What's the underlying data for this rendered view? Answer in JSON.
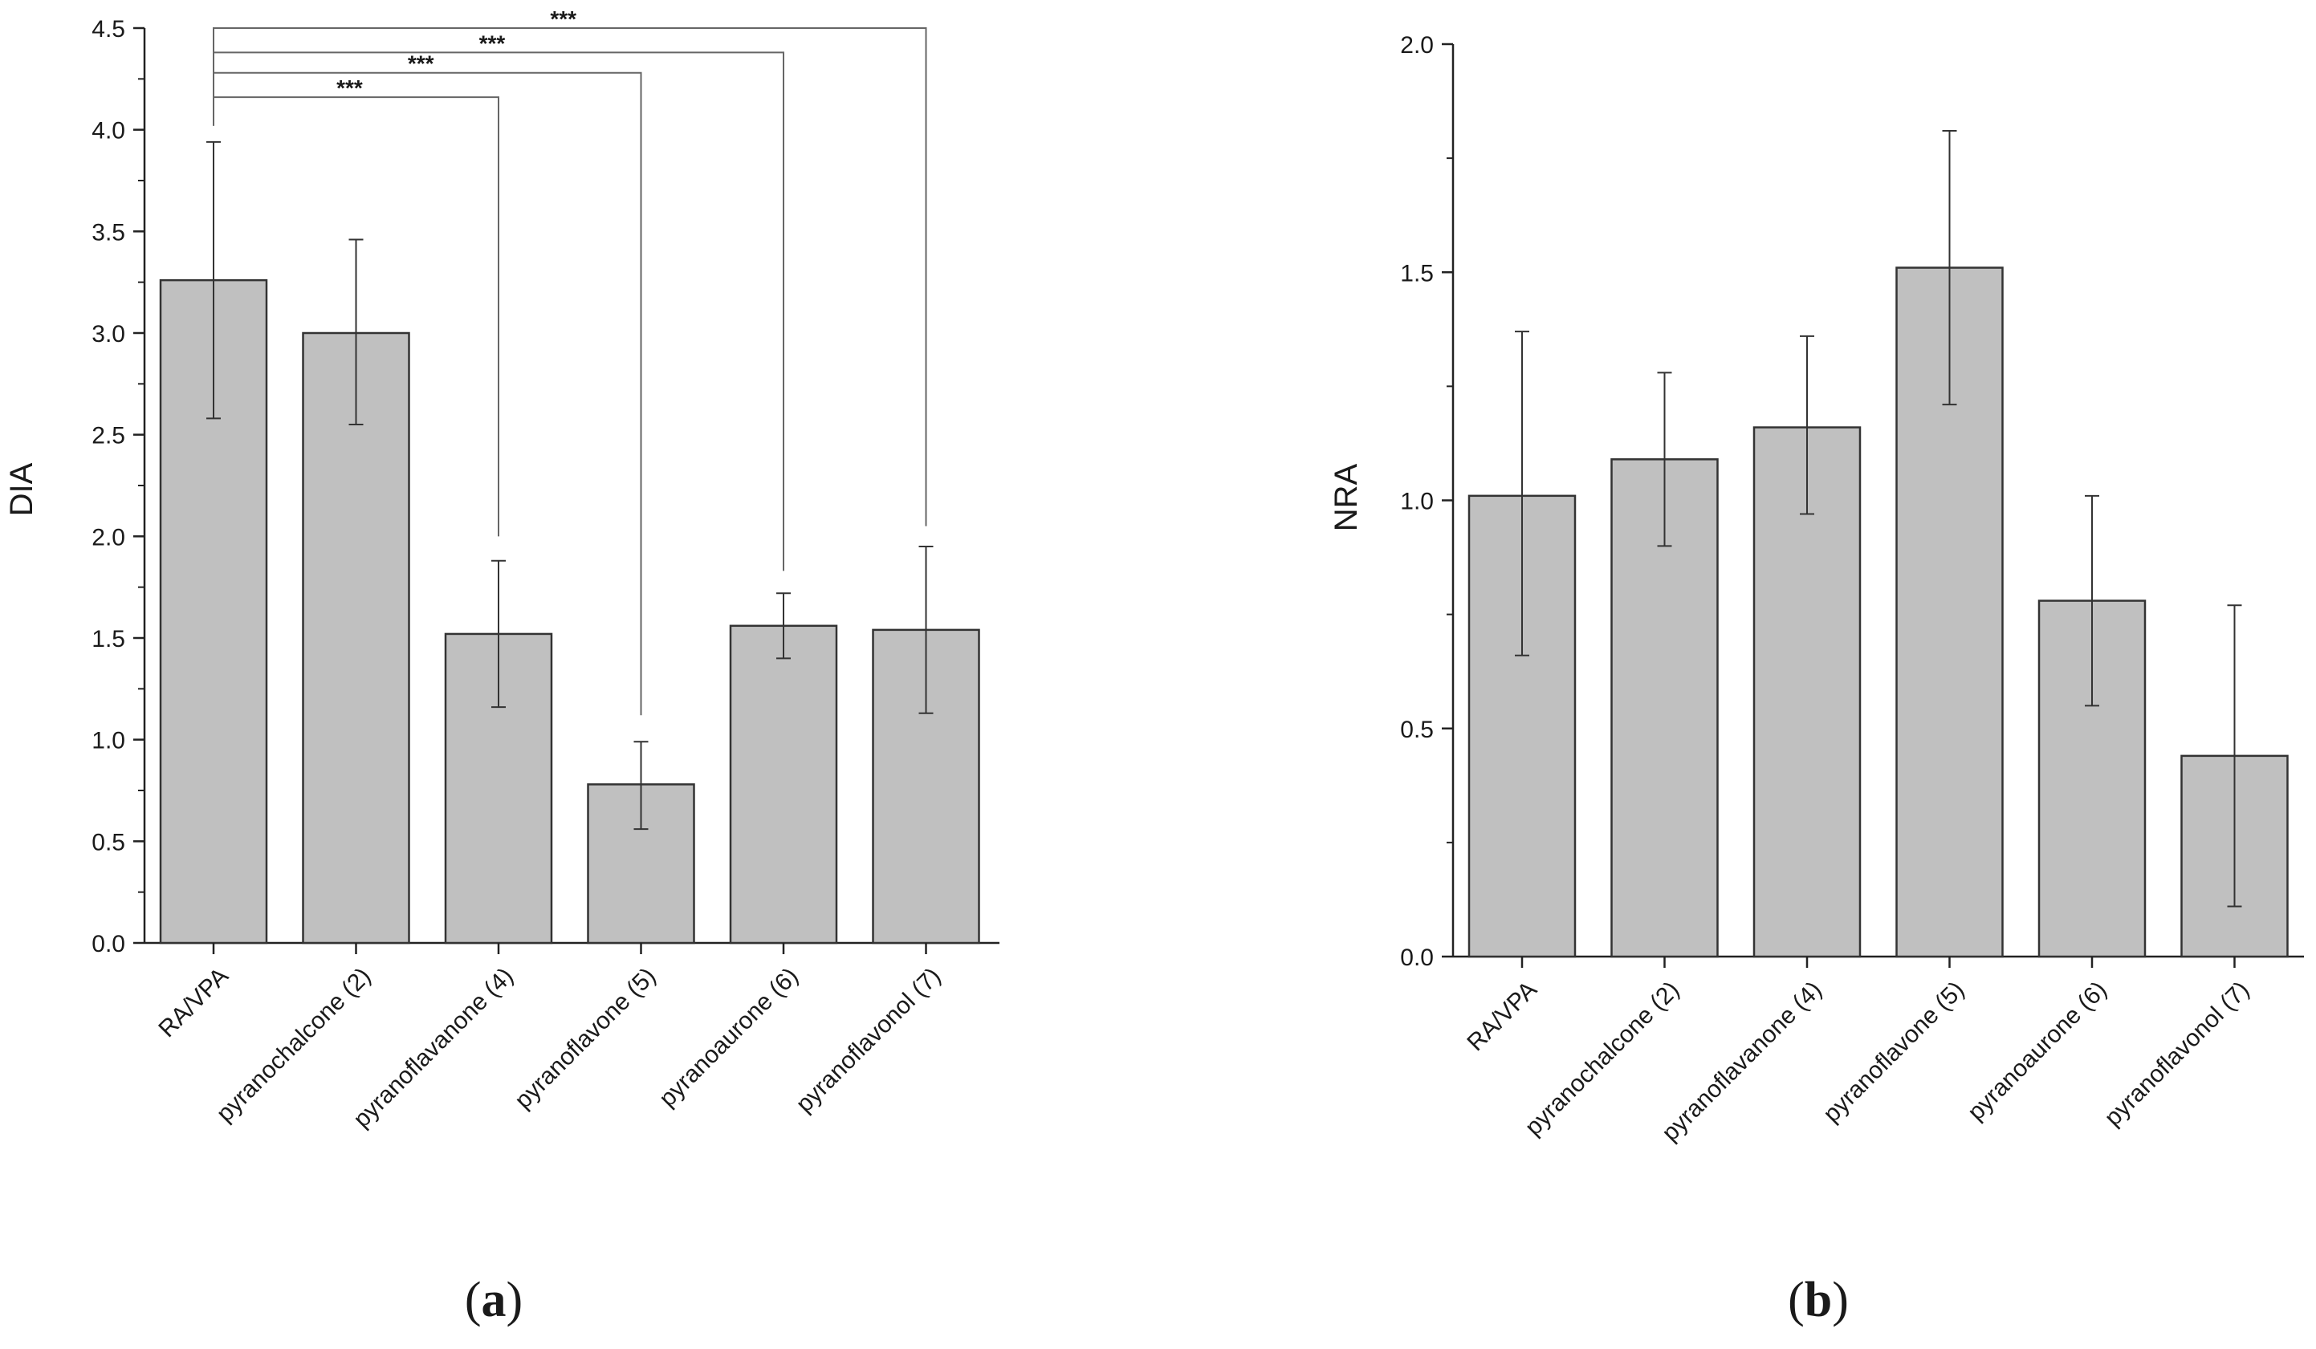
{
  "panels": [
    {
      "id": "a",
      "caption_open": "(",
      "caption_letter": "a",
      "caption_close": ")"
    },
    {
      "id": "b",
      "caption_open": "(",
      "caption_letter": "b",
      "caption_close": ")"
    }
  ],
  "chart_data": [
    {
      "type": "bar",
      "panel": "a",
      "title": "",
      "xlabel": "",
      "ylabel": "DIA",
      "ylim": [
        0,
        4.5
      ],
      "yticks": [
        "0.0",
        "0.5",
        "1.0",
        "1.5",
        "2.0",
        "2.5",
        "3.0",
        "3.5",
        "4.0",
        "4.5"
      ],
      "categories": [
        "RA/VPA",
        "pyranochalcone (2)",
        "pyranoflavanone (4)",
        "pyranoflavone (5)",
        "pyranoaurone (6)",
        "pyranoflavonol (7)"
      ],
      "values": [
        3.26,
        3.0,
        1.52,
        0.78,
        1.56,
        1.54
      ],
      "error_low": [
        2.58,
        2.55,
        1.16,
        0.56,
        1.4,
        1.13
      ],
      "error_high": [
        3.94,
        3.46,
        1.88,
        0.99,
        1.72,
        1.95
      ],
      "bar_color": "#c0c0c0",
      "significance": [
        {
          "from": 0,
          "to": 2,
          "label": "***",
          "level": 4.16,
          "drop_to": 2.0
        },
        {
          "from": 0,
          "to": 3,
          "label": "***",
          "level": 4.28,
          "drop_to": 1.12
        },
        {
          "from": 0,
          "to": 4,
          "label": "***",
          "level": 4.38,
          "drop_to": 1.83
        },
        {
          "from": 0,
          "to": 5,
          "label": "***",
          "level": 4.5,
          "drop_to": 2.05
        }
      ]
    },
    {
      "type": "bar",
      "panel": "b",
      "title": "",
      "xlabel": "",
      "ylabel": "NRA",
      "ylim": [
        0,
        2.0
      ],
      "yticks": [
        "0.0",
        "0.5",
        "1.0",
        "1.5",
        "2.0"
      ],
      "categories": [
        "RA/VPA",
        "pyranochalcone (2)",
        "pyranoflavanone (4)",
        "pyranoflavone (5)",
        "pyranoaurone (6)",
        "pyranoflavonol (7)"
      ],
      "values": [
        1.01,
        1.09,
        1.16,
        1.51,
        0.78,
        0.44
      ],
      "error_low": [
        0.66,
        0.9,
        0.97,
        1.21,
        0.55,
        0.11
      ],
      "error_high": [
        1.37,
        1.28,
        1.36,
        1.81,
        1.01,
        0.77
      ],
      "bar_color": "#c0c0c0",
      "significance": []
    }
  ]
}
